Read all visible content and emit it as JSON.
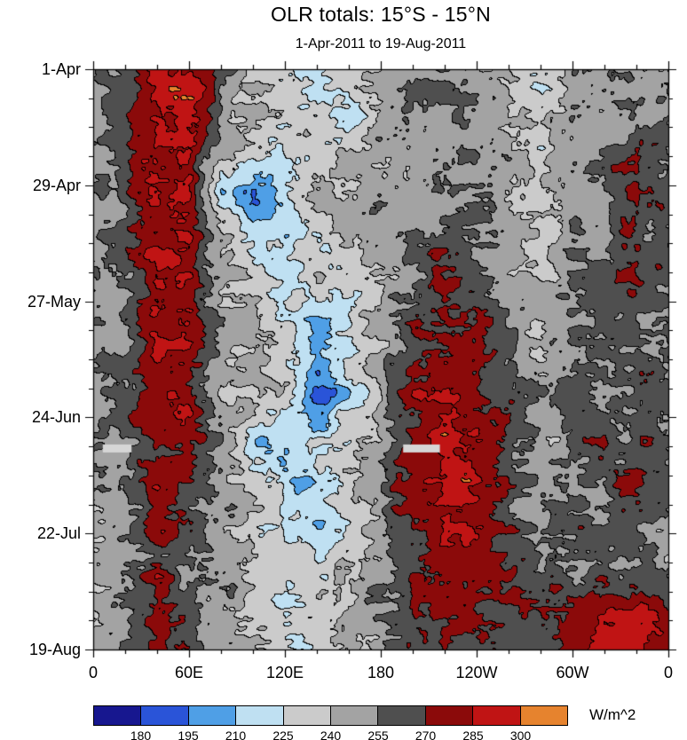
{
  "page": {
    "title": "OLR totals: 15°S - 15°N",
    "subtitle": "1-Apr-2011 to 19-Aug-2011",
    "units_label": "W/m^2"
  },
  "chart_data": {
    "type": "heatmap",
    "title": "OLR totals: 15°S - 15°N",
    "subtitle": "1-Apr-2011 to 19-Aug-2011",
    "description": "Time-longitude (Hovmoller) plot of OLR averaged 15S-15N, 1-Apr-2011 to 19-Aug-2011",
    "x_axis": {
      "range_deg": [
        0,
        360
      ],
      "tick_labels": [
        {
          "lon": 0,
          "label": "0"
        },
        {
          "lon": 60,
          "label": "60E"
        },
        {
          "lon": 120,
          "label": "120E"
        },
        {
          "lon": 180,
          "label": "180"
        },
        {
          "lon": 240,
          "label": "120W"
        },
        {
          "lon": 300,
          "label": "60W"
        },
        {
          "lon": 360,
          "label": "0"
        }
      ],
      "minor_tick_step_deg": 20
    },
    "y_axis": {
      "range_days": [
        0,
        140
      ],
      "tick_labels": [
        {
          "day": 0,
          "label": "1-Apr"
        },
        {
          "day": 28,
          "label": "29-Apr"
        },
        {
          "day": 56,
          "label": "27-May"
        },
        {
          "day": 84,
          "label": "24-Jun"
        },
        {
          "day": 112,
          "label": "22-Jul"
        },
        {
          "day": 140,
          "label": "19-Aug"
        }
      ],
      "minor_tick_step_days": 7
    },
    "colorbar": {
      "units": "W/m^2",
      "boundary_labels": [
        180,
        195,
        210,
        225,
        240,
        255,
        270,
        285,
        300
      ],
      "colors": [
        "#17178f",
        "#2a54d8",
        "#4f9fe6",
        "#bfe0f2",
        "#cbcbcb",
        "#a3a3a3",
        "#4f4f4f",
        "#8b0a0a",
        "#c01414",
        "#e6832e"
      ]
    },
    "contour_line_color": "#000000",
    "missing_color": "#d6d6d6",
    "missing_segments": [
      {
        "day": 91.5,
        "lon_start": 6,
        "lon_end": 24
      },
      {
        "day": 91.5,
        "lon_start": 194,
        "lon_end": 217
      }
    ],
    "grid": {
      "lon_step_deg": 20,
      "day_step_days": 10,
      "values": [
        [
          250,
          258,
          282,
          290,
          255,
          240,
          233,
          215,
          236,
          246,
          252,
          257,
          254,
          247,
          232,
          250,
          257,
          251,
          250
        ],
        [
          248,
          260,
          288,
          292,
          257,
          242,
          237,
          227,
          222,
          241,
          250,
          255,
          252,
          245,
          234,
          248,
          255,
          250,
          248
        ],
        [
          252,
          262,
          290,
          284,
          249,
          235,
          230,
          236,
          240,
          245,
          248,
          252,
          250,
          247,
          232,
          245,
          252,
          271,
          255
        ],
        [
          255,
          264,
          290,
          284,
          214,
          193,
          221,
          238,
          242,
          246,
          250,
          253,
          250,
          246,
          233,
          248,
          255,
          277,
          259
        ],
        [
          252,
          260,
          285,
          279,
          240,
          224,
          210,
          231,
          245,
          248,
          252,
          255,
          252,
          248,
          238,
          250,
          255,
          264,
          254
        ],
        [
          250,
          258,
          288,
          282,
          248,
          237,
          218,
          240,
          223,
          242,
          255,
          266,
          262,
          250,
          240,
          252,
          258,
          274,
          257
        ],
        [
          248,
          256,
          285,
          278,
          250,
          240,
          230,
          213,
          235,
          245,
          264,
          274,
          268,
          255,
          245,
          252,
          256,
          260,
          252
        ],
        [
          250,
          255,
          283,
          275,
          252,
          245,
          235,
          205,
          225,
          248,
          270,
          280,
          273,
          258,
          248,
          254,
          258,
          262,
          253
        ],
        [
          252,
          258,
          288,
          280,
          250,
          240,
          228,
          189,
          216,
          240,
          276,
          289,
          279,
          260,
          250,
          255,
          260,
          265,
          255
        ],
        [
          250,
          256,
          282,
          272,
          248,
          219,
          206,
          228,
          238,
          245,
          279,
          291,
          281,
          262,
          250,
          255,
          258,
          260,
          252
        ],
        [
          248,
          254,
          278,
          268,
          250,
          240,
          216,
          209,
          230,
          248,
          281,
          292,
          283,
          265,
          252,
          256,
          260,
          273,
          255
        ],
        [
          250,
          255,
          275,
          265,
          248,
          238,
          222,
          211,
          226,
          245,
          276,
          288,
          278,
          262,
          250,
          254,
          258,
          262,
          252
        ],
        [
          248,
          252,
          272,
          262,
          246,
          240,
          230,
          226,
          236,
          248,
          268,
          282,
          285,
          268,
          252,
          255,
          258,
          260,
          250
        ],
        [
          250,
          254,
          270,
          260,
          245,
          238,
          228,
          233,
          240,
          250,
          262,
          272,
          276,
          268,
          262,
          272,
          281,
          286,
          270
        ],
        [
          252,
          256,
          268,
          258,
          246,
          240,
          225,
          236,
          242,
          252,
          258,
          268,
          272,
          265,
          268,
          279,
          289,
          292,
          276
        ]
      ]
    }
  }
}
